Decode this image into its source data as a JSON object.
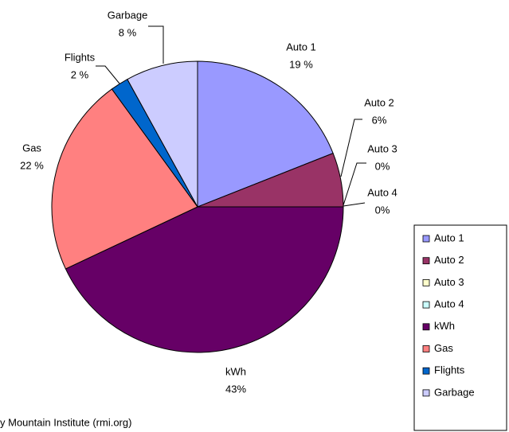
{
  "chart_data": {
    "type": "pie",
    "categories": [
      "Auto 1",
      "Auto 2",
      "Auto 3",
      "Auto 4",
      "kWh",
      "Gas",
      "Flights",
      "Garbage"
    ],
    "values": [
      19,
      6,
      0,
      0,
      43,
      22,
      2,
      8
    ],
    "value_labels": [
      "19 %",
      "6%",
      "0%",
      "0%",
      "43%",
      "22 %",
      "2 %",
      "8 %"
    ],
    "colors": [
      "#9999ff",
      "#993366",
      "#ffffcc",
      "#ccffff",
      "#660066",
      "#ff8080",
      "#0066cc",
      "#ccccff"
    ],
    "legend": "right",
    "source": "y Mountain Institute (rmi.org)"
  }
}
